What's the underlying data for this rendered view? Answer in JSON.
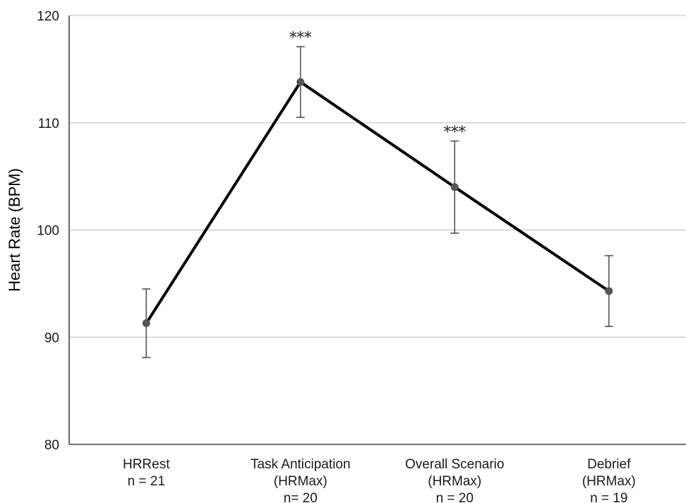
{
  "chart_data": {
    "type": "line",
    "title": "",
    "ylabel": "Heart Rate (BPM)",
    "xlabel": "",
    "ylim": [
      80,
      120
    ],
    "yticks": [
      80,
      90,
      100,
      110,
      120
    ],
    "grid": true,
    "legend": "none",
    "categories": [
      [
        "HRRest",
        "n = 21"
      ],
      [
        "Task Anticipation",
        "(HRMax)",
        "n= 20"
      ],
      [
        "Overall Scenario",
        "(HRMax)",
        "n = 20"
      ],
      [
        "Debrief",
        "(HRMax)",
        "n = 19"
      ]
    ],
    "series": [
      {
        "values": [
          91.3,
          113.8,
          104.0,
          94.3
        ],
        "error_high": [
          94.5,
          117.1,
          108.3,
          97.6
        ],
        "error_low": [
          88.1,
          110.5,
          99.7,
          91.0
        ],
        "annotations": [
          "",
          "***",
          "***",
          ""
        ]
      }
    ],
    "colors": {
      "line": "#000000",
      "marker": "#555555",
      "error": "#555555",
      "grid": "#c8c8c8"
    }
  }
}
